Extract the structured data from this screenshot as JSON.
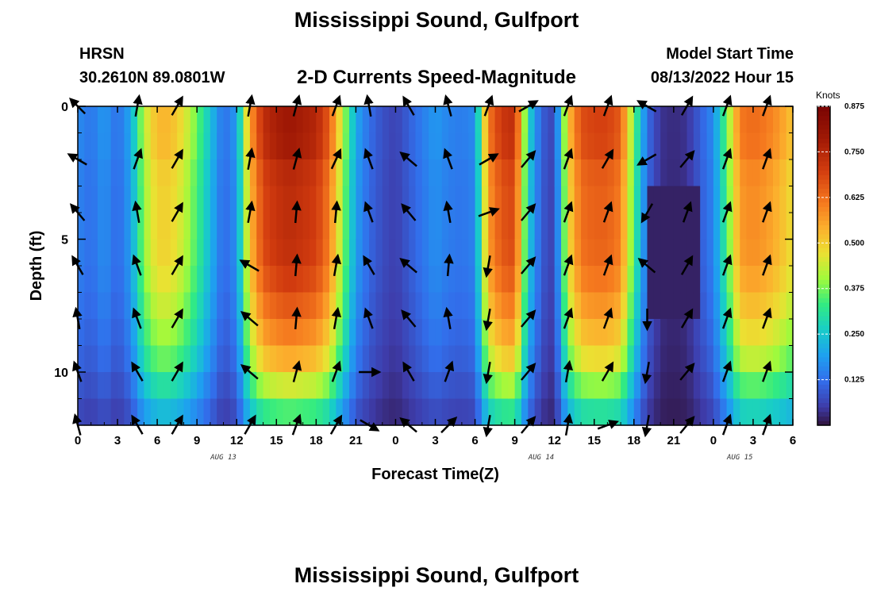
{
  "page": {
    "title_top": "Mississippi Sound, Gulfport",
    "title_bottom": "Mississippi Sound, Gulfport",
    "station_id": "HRSN",
    "station_coords": "30.2610N  89.0801W",
    "model_start_label": "Model Start Time",
    "model_start_value": "08/13/2022 Hour 15"
  },
  "colors": {
    "arrow": "#000000",
    "frame": "#000000",
    "background": "#ffffff"
  },
  "chart_data": {
    "type": "heatmap",
    "title": "2-D Currents Speed-Magnitude",
    "xlabel": "Forecast Time(Z)",
    "ylabel": "Depth (ft)",
    "x_tick_labels": [
      "0",
      "3",
      "6",
      "9",
      "12",
      "15",
      "18",
      "21",
      "0",
      "3",
      "6",
      "9",
      "12",
      "15",
      "18",
      "21",
      "0",
      "3",
      "6"
    ],
    "x_range_hours": [
      0,
      54
    ],
    "date_labels": [
      {
        "hour": 11,
        "text": "AUG 13"
      },
      {
        "hour": 35,
        "text": "AUG 14"
      },
      {
        "hour": 50,
        "text": "AUG 15"
      }
    ],
    "y_range_ft": [
      0,
      12
    ],
    "y_tick_values": [
      0,
      5,
      10
    ],
    "y_tick_labels": [
      "0",
      "5",
      "10"
    ],
    "colorbar": {
      "unit": "Knots",
      "range": [
        0,
        0.875
      ],
      "tick_values": [
        0.125,
        0.25,
        0.375,
        0.5,
        0.625,
        0.75,
        0.875
      ],
      "tick_labels": [
        "0.125",
        "0.250",
        "0.375",
        "0.500",
        "0.625",
        "0.750",
        "0.875"
      ]
    },
    "time_profile_knots": [
      {
        "h": 0,
        "v": 0.16
      },
      {
        "h": 1,
        "v": 0.13
      },
      {
        "h": 2,
        "v": 0.18
      },
      {
        "h": 3,
        "v": 0.12
      },
      {
        "h": 4,
        "v": 0.2
      },
      {
        "h": 5,
        "v": 0.42
      },
      {
        "h": 6,
        "v": 0.52
      },
      {
        "h": 7,
        "v": 0.52
      },
      {
        "h": 8,
        "v": 0.46
      },
      {
        "h": 9,
        "v": 0.36
      },
      {
        "h": 10,
        "v": 0.24
      },
      {
        "h": 11,
        "v": 0.12
      },
      {
        "h": 12,
        "v": 0.18
      },
      {
        "h": 13,
        "v": 0.55
      },
      {
        "h": 14,
        "v": 0.72
      },
      {
        "h": 15,
        "v": 0.76
      },
      {
        "h": 16,
        "v": 0.78
      },
      {
        "h": 17,
        "v": 0.76
      },
      {
        "h": 18,
        "v": 0.74
      },
      {
        "h": 19,
        "v": 0.64
      },
      {
        "h": 20,
        "v": 0.42
      },
      {
        "h": 21,
        "v": 0.2
      },
      {
        "h": 22,
        "v": 0.12
      },
      {
        "h": 23,
        "v": 0.08
      },
      {
        "h": 24,
        "v": 0.06
      },
      {
        "h": 25,
        "v": 0.1
      },
      {
        "h": 26,
        "v": 0.14
      },
      {
        "h": 27,
        "v": 0.18
      },
      {
        "h": 28,
        "v": 0.15
      },
      {
        "h": 29,
        "v": 0.14
      },
      {
        "h": 30,
        "v": 0.16
      },
      {
        "h": 31,
        "v": 0.6
      },
      {
        "h": 32,
        "v": 0.7
      },
      {
        "h": 33,
        "v": 0.72
      },
      {
        "h": 34,
        "v": 0.28
      },
      {
        "h": 35,
        "v": 0.1
      },
      {
        "h": 36,
        "v": 0.06
      },
      {
        "h": 37,
        "v": 0.5
      },
      {
        "h": 38,
        "v": 0.66
      },
      {
        "h": 39,
        "v": 0.68
      },
      {
        "h": 40,
        "v": 0.68
      },
      {
        "h": 41,
        "v": 0.64
      },
      {
        "h": 42,
        "v": 0.36
      },
      {
        "h": 43,
        "v": 0.12
      },
      {
        "h": 44,
        "v": 0.04
      },
      {
        "h": 45,
        "v": 0.03
      },
      {
        "h": 46,
        "v": 0.04
      },
      {
        "h": 47,
        "v": 0.1
      },
      {
        "h": 48,
        "v": 0.16
      },
      {
        "h": 49,
        "v": 0.36
      },
      {
        "h": 50,
        "v": 0.6
      },
      {
        "h": 51,
        "v": 0.62
      },
      {
        "h": 52,
        "v": 0.6
      },
      {
        "h": 53,
        "v": 0.56
      },
      {
        "h": 54,
        "v": 0.5
      }
    ],
    "depth_factor": [
      {
        "d": 0,
        "f": 1.0
      },
      {
        "d": 1,
        "f": 1.04
      },
      {
        "d": 2,
        "f": 0.98
      },
      {
        "d": 3,
        "f": 0.95
      },
      {
        "d": 4,
        "f": 0.95
      },
      {
        "d": 5,
        "f": 0.95
      },
      {
        "d": 6,
        "f": 0.93
      },
      {
        "d": 7,
        "f": 0.88
      },
      {
        "d": 8,
        "f": 0.82
      },
      {
        "d": 9,
        "f": 0.75
      },
      {
        "d": 10,
        "f": 0.66
      },
      {
        "d": 11,
        "f": 0.5
      },
      {
        "d": 12,
        "f": 0.4
      }
    ],
    "arrow_hours": [
      0,
      4.5,
      7.5,
      13,
      16.5,
      19.5,
      22,
      25,
      28,
      31,
      34,
      37,
      40,
      43,
      46,
      49,
      52
    ],
    "arrow_depths_ft": [
      0,
      2,
      4,
      6,
      8,
      10,
      12
    ],
    "arrow_directions_deg": [
      [
        315,
        300,
        320,
        330,
        350,
        340,
        345
      ],
      [
        10,
        20,
        350,
        340,
        340,
        330,
        330
      ],
      [
        30,
        30,
        30,
        30,
        30,
        30,
        30
      ],
      [
        10,
        10,
        10,
        300,
        310,
        310,
        30
      ],
      [
        15,
        15,
        5,
        5,
        5,
        15,
        20
      ],
      [
        20,
        25,
        5,
        10,
        10,
        20,
        30
      ],
      [
        350,
        340,
        340,
        330,
        340,
        90,
        120
      ],
      [
        330,
        310,
        320,
        310,
        320,
        330,
        310
      ],
      [
        345,
        340,
        350,
        5,
        350,
        20,
        45
      ],
      [
        20,
        60,
        70,
        190,
        190,
        190,
        190
      ],
      [
        60,
        40,
        40,
        40,
        40,
        40,
        40
      ],
      [
        20,
        20,
        20,
        20,
        20,
        10,
        10
      ],
      [
        20,
        30,
        20,
        20,
        20,
        30,
        70
      ],
      [
        300,
        240,
        210,
        310,
        180,
        190,
        190
      ],
      [
        30,
        40,
        20,
        30,
        30,
        40,
        40
      ],
      [
        20,
        20,
        20,
        20,
        20,
        20,
        20
      ],
      [
        20,
        20,
        20,
        20,
        20,
        20,
        20
      ]
    ]
  }
}
